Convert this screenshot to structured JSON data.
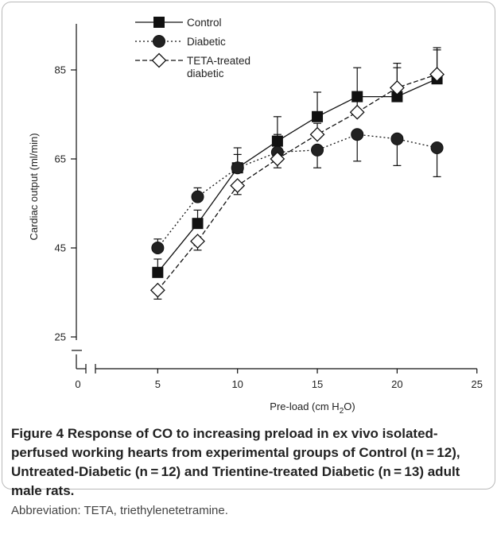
{
  "chart_data": {
    "type": "line",
    "title": "",
    "xlabel": "Pre-load (cm H₂O)",
    "xlabel_main": "Pre-load (cm H",
    "xlabel_sub": "2",
    "xlabel_end": "O)",
    "ylabel": "Cardiac output (ml/min)",
    "xlim": [
      0,
      25
    ],
    "ylim": [
      25,
      90
    ],
    "x_ticks": [
      0,
      5,
      10,
      15,
      20,
      25
    ],
    "y_ticks": [
      25,
      45,
      65,
      85
    ],
    "x": [
      5,
      7.5,
      10,
      12.5,
      15,
      17.5,
      20,
      22.5
    ],
    "legend_position": "top-left",
    "series": [
      {
        "name": "Control",
        "marker": "square",
        "line": "solid",
        "values": [
          39.5,
          50.5,
          63,
          69,
          74.5,
          79,
          79,
          83
        ],
        "err": [
          3,
          3,
          3,
          5.5,
          5.5,
          6.5,
          6.5,
          6.5
        ]
      },
      {
        "name": "Diabetic",
        "marker": "circle",
        "line": "dotted",
        "values": [
          45,
          56.5,
          63,
          66.5,
          67,
          70.5,
          69.5,
          67.5
        ],
        "err": [
          2,
          2,
          4.5,
          4,
          4,
          6,
          6,
          6.5
        ]
      },
      {
        "name": "TETA-treated diabetic",
        "name_line1": "TETA-treated",
        "name_line2": "diabetic",
        "marker": "diamond",
        "line": "dashed",
        "values": [
          35.5,
          46.5,
          59,
          65,
          70.5,
          75.5,
          81,
          84
        ],
        "err": [
          2,
          2,
          2,
          2,
          2.5,
          2.5,
          5.5,
          6
        ]
      }
    ]
  },
  "caption": {
    "label": "Figure 4",
    "text": " Response of CO to increasing preload in ex vivo isolated-perfused working hearts from experimental groups of Control (n = 12), Untreated-Diabetic (n = 12) and Trientine-treated Diabetic (n = 13) adult male rats.",
    "abbreviation": "Abbreviation: TETA, triethylenetetramine."
  }
}
